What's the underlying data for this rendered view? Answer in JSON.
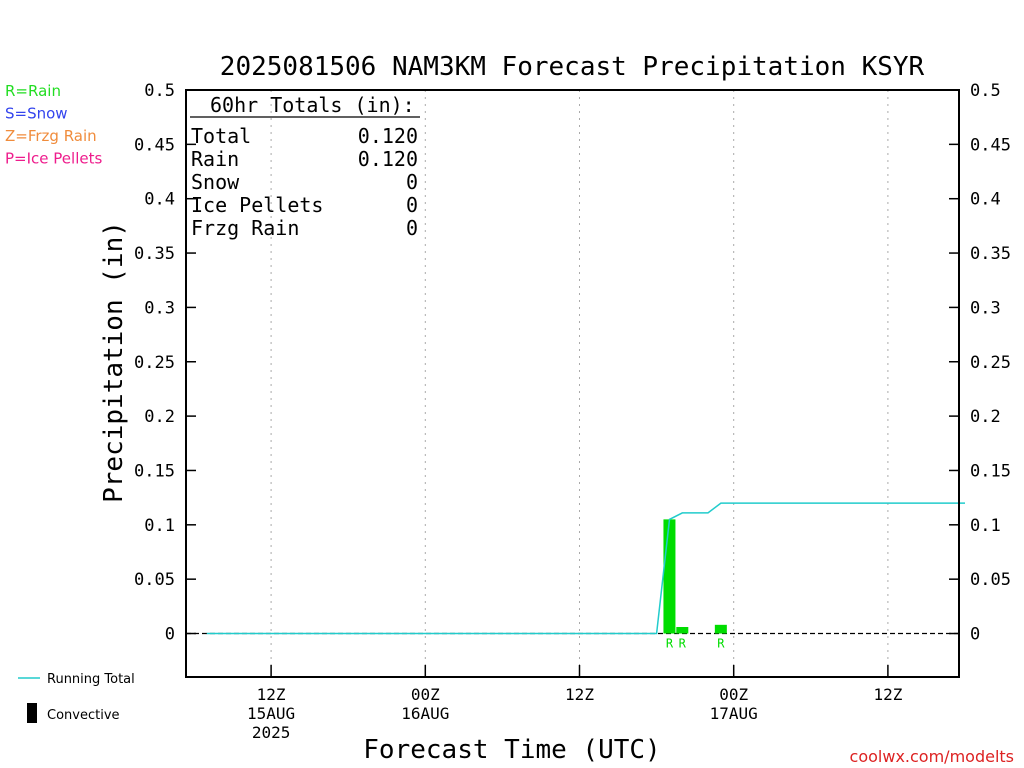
{
  "chart_data": {
    "type": "bar",
    "title": "2025081506 NAM3KM Forecast Precipitation KSYR",
    "ylabel": "Precipitation (in)",
    "xlabel": "Forecast Time (UTC)",
    "ylim": [
      -0.04,
      0.5
    ],
    "y_ticks": [
      0,
      0.05,
      0.1,
      0.15,
      0.2,
      0.25,
      0.3,
      0.35,
      0.4,
      0.45,
      0.5
    ],
    "y_tick_labels": [
      "0",
      "0.05",
      "0.1",
      "0.15",
      "0.2",
      "0.25",
      "0.3",
      "0.35",
      "0.4",
      "0.45",
      "0.5"
    ],
    "x_unit": "forecast hour",
    "xlim": [
      0,
      60
    ],
    "x_ticks": [
      {
        "hour": 6,
        "label": "12Z",
        "date": "15AUG",
        "year": "2025"
      },
      {
        "hour": 18,
        "label": "00Z",
        "date": "16AUG",
        "year": ""
      },
      {
        "hour": 30,
        "label": "12Z",
        "date": "",
        "year": ""
      },
      {
        "hour": 42,
        "label": "00Z",
        "date": "17AUG",
        "year": ""
      },
      {
        "hour": 54,
        "label": "12Z",
        "date": "",
        "year": ""
      }
    ],
    "grid": "vertical dotted at x ticks",
    "bars": [
      {
        "hour": 37,
        "value": 0.105,
        "type": "R"
      },
      {
        "hour": 38,
        "value": 0.006,
        "type": "R"
      },
      {
        "hour": 41,
        "value": 0.008,
        "type": "R"
      }
    ],
    "running_total": [
      {
        "hour": 1,
        "value": 0
      },
      {
        "hour": 36,
        "value": 0
      },
      {
        "hour": 37,
        "value": 0.105
      },
      {
        "hour": 38,
        "value": 0.111
      },
      {
        "hour": 40,
        "value": 0.111
      },
      {
        "hour": 41,
        "value": 0.12
      },
      {
        "hour": 60,
        "value": 0.12
      }
    ],
    "totals_box": {
      "title": "60hr Totals (in):",
      "rows": [
        {
          "label": "Total",
          "value": "0.120"
        },
        {
          "label": "Rain",
          "value": "0.120"
        },
        {
          "label": "Snow",
          "value": "0"
        },
        {
          "label": "Ice Pellets",
          "value": "0"
        },
        {
          "label": "Frzg Rain",
          "value": "0"
        }
      ]
    },
    "type_legend": [
      {
        "text": "R=Rain",
        "color": "#22dd22"
      },
      {
        "text": "S=Snow",
        "color": "#3344ee"
      },
      {
        "text": "Z=Frzg Rain",
        "color": "#f08c3c"
      },
      {
        "text": "P=Ice Pellets",
        "color": "#ee1c8c"
      }
    ],
    "bottom_legend": [
      {
        "text": "Running Total",
        "color": "#22cccc",
        "symbol": "line"
      },
      {
        "text": "Convective",
        "color": "#000000",
        "symbol": "bar"
      }
    ],
    "colors": {
      "rain": "#00dd00",
      "running_total": "#22cccc",
      "axis": "#000000",
      "grid": "#aaaaaa"
    },
    "credit": "coolwx.com/modelts",
    "credit_color": "#dd2222"
  }
}
